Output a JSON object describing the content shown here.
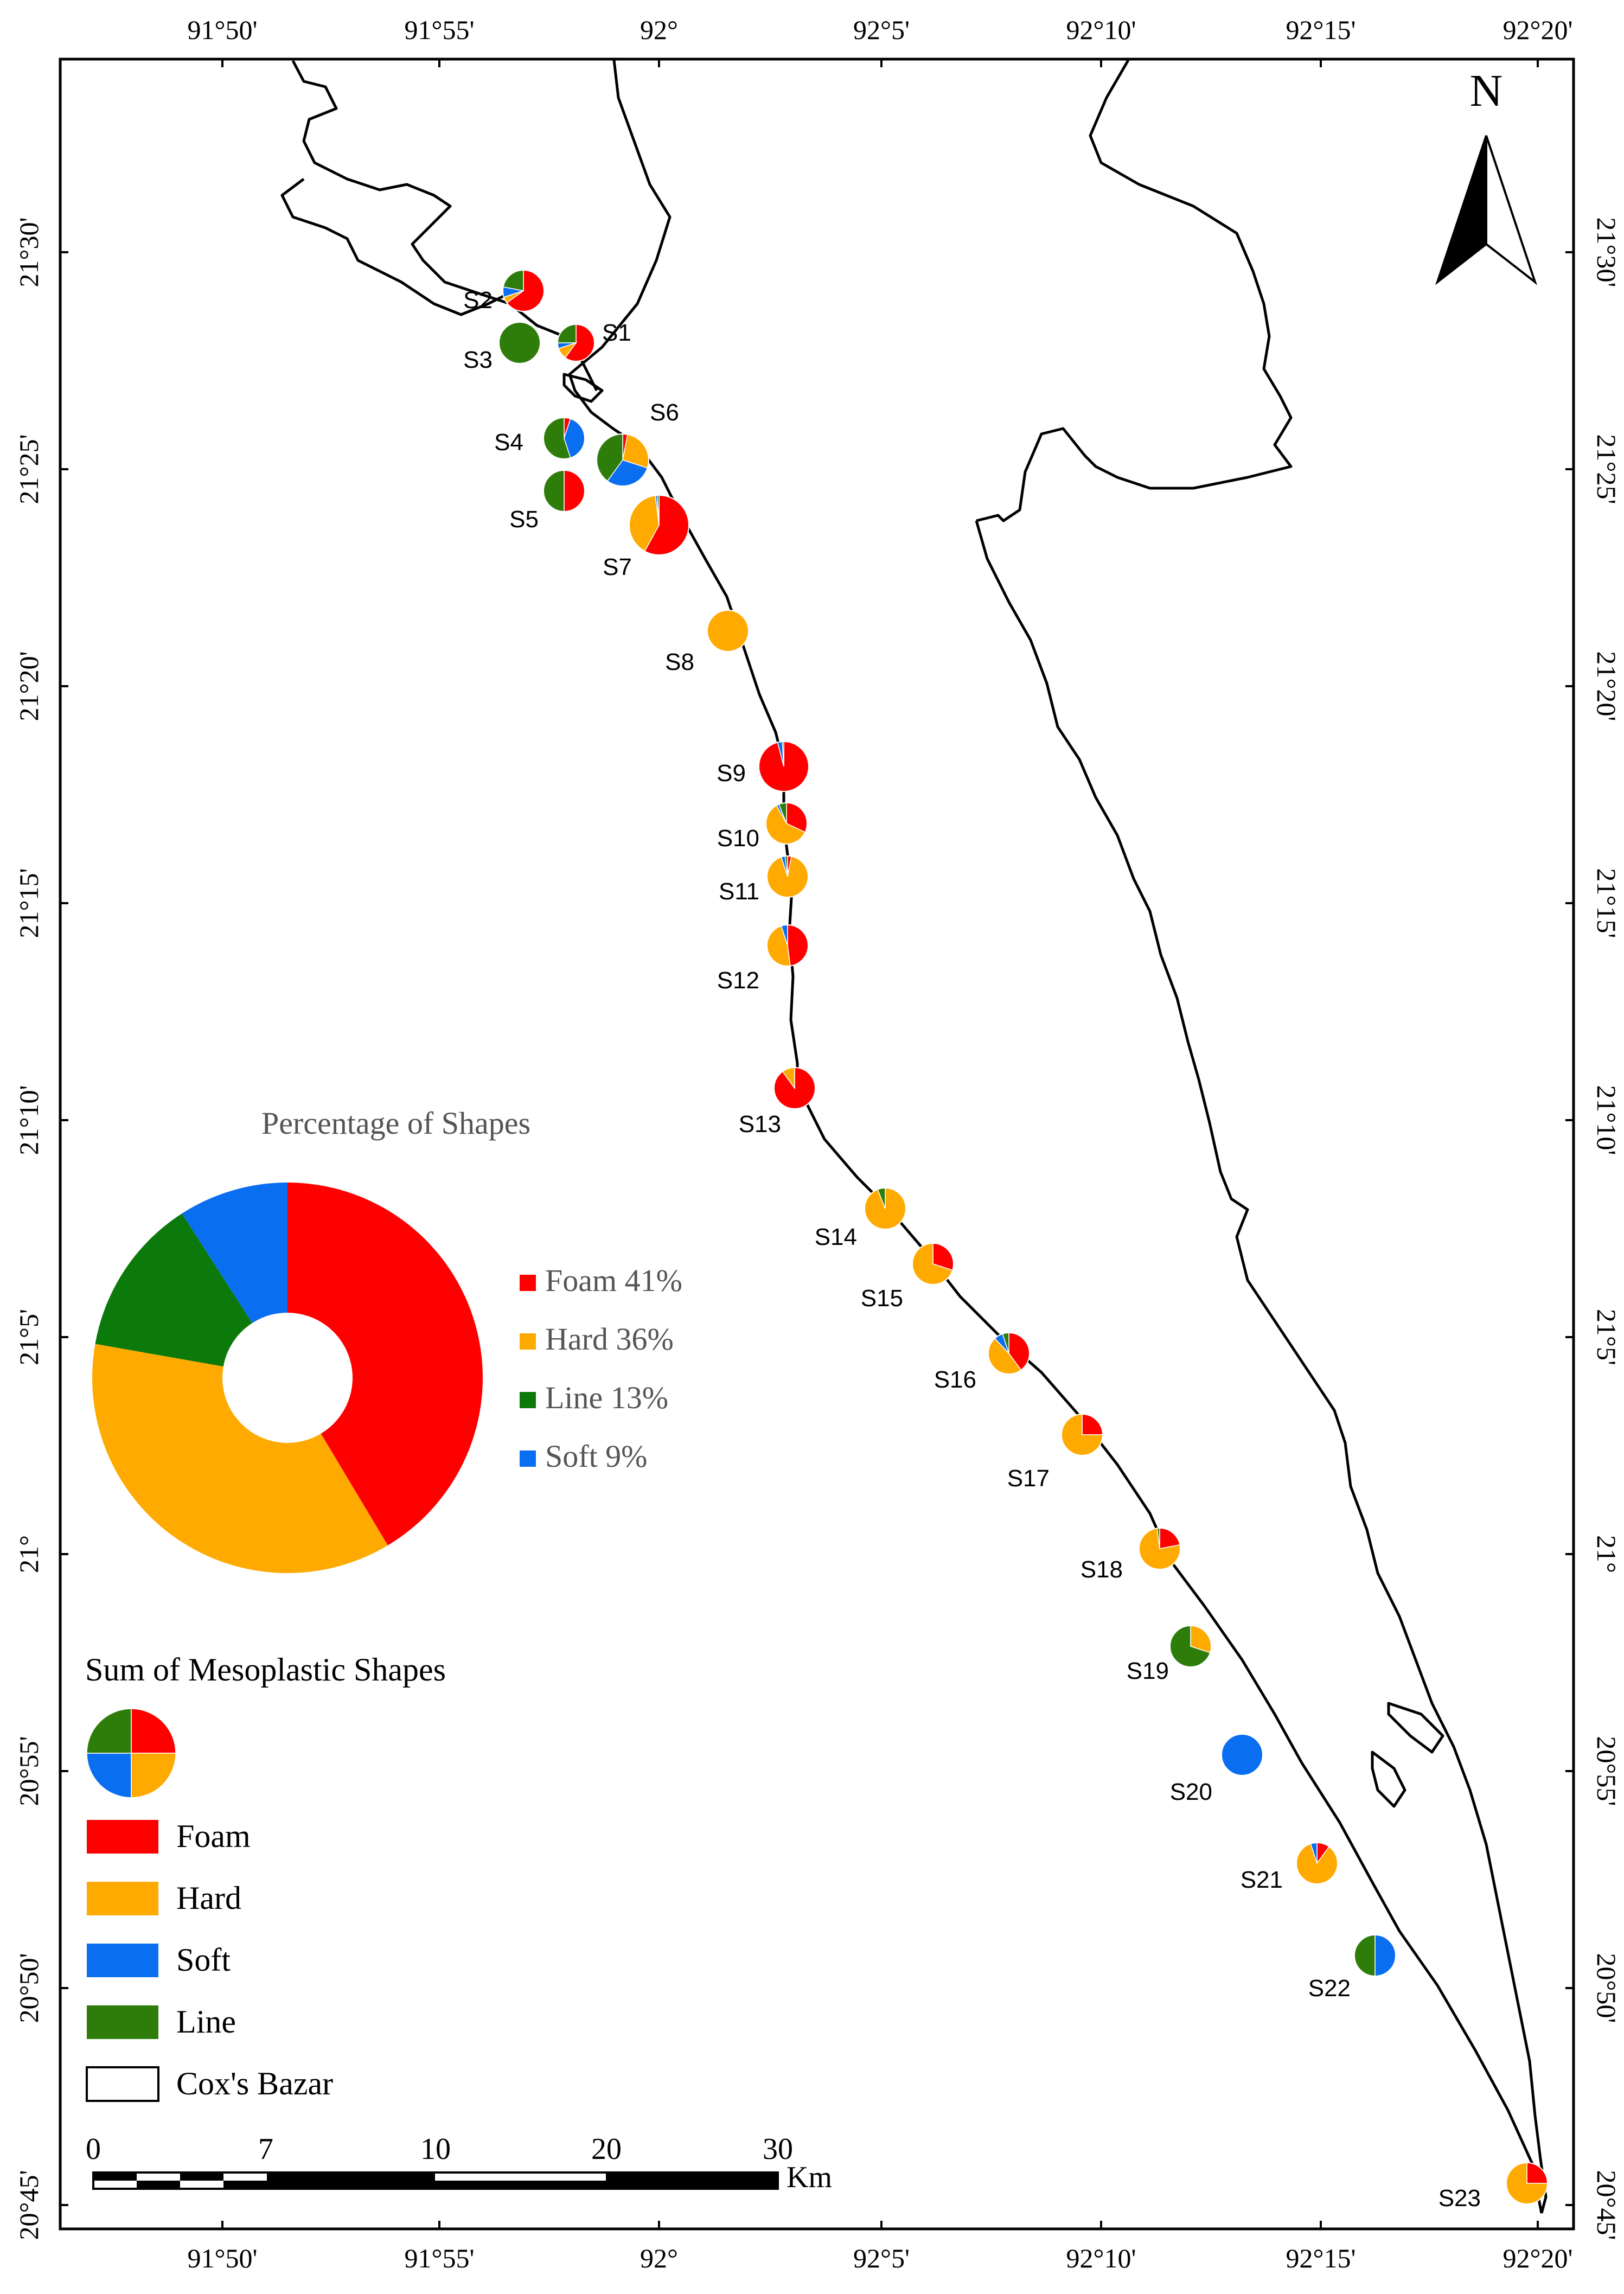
{
  "colors": {
    "foam": "#ff0000",
    "hard": "#ffaa00",
    "line": "#2e7d0a",
    "soft": "#0a6ef0",
    "line_inset": "#0b7a0b",
    "coast": "#000000"
  },
  "north_label": "N",
  "axes": {
    "top_lon": [
      "91°50'",
      "91°55'",
      "92°",
      "92°5'",
      "92°10'",
      "92°15'",
      "92°20'"
    ],
    "bottom_lon": [
      "91°50'",
      "91°55'",
      "92°",
      "92°5'",
      "92°10'",
      "92°15'",
      "92°20'"
    ],
    "left_lat": [
      "21°30'",
      "21°25'",
      "21°20'",
      "21°15'",
      "21°10'",
      "21°5'",
      "21°",
      "20°55'",
      "20°50'",
      "20°45'"
    ],
    "right_lat": [
      "21°30'",
      "21°25'",
      "21°20'",
      "21°15'",
      "21°10'",
      "21°5'",
      "21°",
      "20°55'",
      "20°50'",
      "20°45'"
    ]
  },
  "sites": [
    {
      "id": "S1",
      "values": {
        "foam": 60,
        "hard": 10,
        "line": 25,
        "soft": 5
      }
    },
    {
      "id": "S2",
      "values": {
        "foam": 65,
        "hard": 5,
        "line": 22,
        "soft": 8
      }
    },
    {
      "id": "S3",
      "values": {
        "foam": 0,
        "hard": 0,
        "line": 100,
        "soft": 0
      }
    },
    {
      "id": "S4",
      "values": {
        "foam": 5,
        "hard": 0,
        "line": 55,
        "soft": 40
      }
    },
    {
      "id": "S5",
      "values": {
        "foam": 50,
        "hard": 0,
        "line": 50,
        "soft": 0
      }
    },
    {
      "id": "S6",
      "values": {
        "foam": 3,
        "hard": 27,
        "line": 40,
        "soft": 30
      }
    },
    {
      "id": "S7",
      "values": {
        "foam": 58,
        "hard": 40,
        "line": 1,
        "soft": 1
      }
    },
    {
      "id": "S8",
      "values": {
        "foam": 0,
        "hard": 100,
        "line": 0,
        "soft": 0
      }
    },
    {
      "id": "S9",
      "values": {
        "foam": 96,
        "hard": 0,
        "line": 1,
        "soft": 3
      }
    },
    {
      "id": "S10",
      "values": {
        "foam": 32,
        "hard": 60,
        "line": 6,
        "soft": 2
      }
    },
    {
      "id": "S11",
      "values": {
        "foam": 3,
        "hard": 92,
        "line": 2,
        "soft": 3
      }
    },
    {
      "id": "S12",
      "values": {
        "foam": 48,
        "hard": 47,
        "line": 0,
        "soft": 5
      }
    },
    {
      "id": "S13",
      "values": {
        "foam": 90,
        "hard": 10,
        "line": 0,
        "soft": 0
      }
    },
    {
      "id": "S14",
      "values": {
        "foam": 0,
        "hard": 94,
        "line": 6,
        "soft": 0
      }
    },
    {
      "id": "S15",
      "values": {
        "foam": 30,
        "hard": 70,
        "line": 0,
        "soft": 0
      }
    },
    {
      "id": "S16",
      "values": {
        "foam": 40,
        "hard": 48,
        "line": 5,
        "soft": 7
      }
    },
    {
      "id": "S17",
      "values": {
        "foam": 25,
        "hard": 75,
        "line": 0,
        "soft": 0
      }
    },
    {
      "id": "S18",
      "values": {
        "foam": 22,
        "hard": 76,
        "line": 2,
        "soft": 0
      }
    },
    {
      "id": "S19",
      "values": {
        "foam": 0,
        "hard": 30,
        "line": 70,
        "soft": 0
      }
    },
    {
      "id": "S20",
      "values": {
        "foam": 0,
        "hard": 0,
        "line": 0,
        "soft": 100
      }
    },
    {
      "id": "S21",
      "values": {
        "foam": 10,
        "hard": 85,
        "line": 0,
        "soft": 5
      }
    },
    {
      "id": "S22",
      "values": {
        "foam": 0,
        "hard": 0,
        "line": 50,
        "soft": 50
      }
    },
    {
      "id": "S23",
      "values": {
        "foam": 25,
        "hard": 75,
        "line": 0,
        "soft": 0
      }
    }
  ],
  "inset": {
    "title": "Percentage of Shapes",
    "items": [
      {
        "key": "foam",
        "label": "Foam 41%",
        "value": 41
      },
      {
        "key": "hard",
        "label": "Hard 36%",
        "value": 36
      },
      {
        "key": "line",
        "label": "Line 13%",
        "value": 13
      },
      {
        "key": "soft",
        "label": "Soft 9%",
        "value": 9
      }
    ]
  },
  "legend": {
    "title": "Sum of Mesoplastic Shapes",
    "items": [
      {
        "key": "foam",
        "label": "Foam"
      },
      {
        "key": "hard",
        "label": "Hard"
      },
      {
        "key": "soft",
        "label": "Soft"
      },
      {
        "key": "line",
        "label": "Line"
      },
      {
        "key": "coxs",
        "label": "Cox's Bazar"
      }
    ]
  },
  "scale_bar": {
    "ticks": [
      "0",
      "7",
      "10",
      "20",
      "30"
    ],
    "unit": "Km"
  }
}
